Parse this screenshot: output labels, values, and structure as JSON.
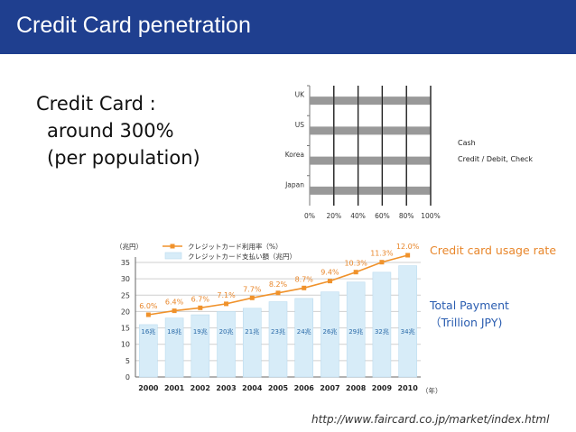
{
  "slide": {
    "title": "Credit Card penetration",
    "bullet_lines": [
      "Credit Card :",
      "around 300%",
      "(per population)"
    ],
    "usage_rate_label": "Credit card usage rate",
    "payment_label_line1": "Total Payment",
    "payment_label_line2": "（Trillion JPY)",
    "source": "http://www.faircard.co.jp/market/index.html"
  },
  "colors": {
    "title_bar": "#1f3f8f",
    "stacked_bar": "#999999",
    "usage_line": "#f0922b",
    "payment_bar": "#d7ecf8",
    "payment_value_text": "#2a6aa8",
    "rate_text": "#e8862a"
  },
  "chart_data": [
    {
      "type": "bar",
      "orientation": "horizontal",
      "stacked": true,
      "categories": [
        "UK",
        "US",
        "Korea",
        "Japan"
      ],
      "series": [
        {
          "name": "Cash",
          "values": [
            100,
            100,
            100,
            100
          ]
        },
        {
          "name": "Credit / Debit, Check",
          "values": [
            0,
            0,
            0,
            0
          ]
        }
      ],
      "xticks": [
        "0%",
        "20%",
        "40%",
        "60%",
        "80%",
        "100%"
      ],
      "xlim": [
        0,
        100
      ],
      "grid": true,
      "legend_position": "right"
    },
    {
      "type": "bar+line",
      "x": [
        "2000",
        "2001",
        "2002",
        "2003",
        "2004",
        "2005",
        "2006",
        "2007",
        "2008",
        "2009",
        "2010"
      ],
      "series": [
        {
          "name": "クレジットカード支払い額（兆円）",
          "type": "bar",
          "values": [
            16,
            18,
            19,
            20,
            21,
            23,
            24,
            26,
            29,
            32,
            34
          ],
          "labels": [
            "16兆",
            "18兆",
            "19兆",
            "20兆",
            "21兆",
            "23兆",
            "24兆",
            "26兆",
            "29兆",
            "32兆",
            "34兆"
          ]
        },
        {
          "name": "クレジットカード利用率（%）",
          "type": "line",
          "values": [
            6.0,
            6.4,
            6.7,
            7.1,
            7.7,
            8.2,
            8.7,
            9.4,
            10.3,
            11.3,
            12.0
          ],
          "labels": [
            "6.0%",
            "6.4%",
            "6.7%",
            "7.1%",
            "7.7%",
            "8.2%",
            "8.7%",
            "9.4%",
            "10.3%",
            "11.3%",
            "12.0%"
          ]
        }
      ],
      "y_unit": "（兆円）",
      "x_unit": "（年）",
      "yticks": [
        0,
        5,
        10,
        15,
        20,
        25,
        30,
        35
      ],
      "ylim": [
        0,
        35
      ],
      "grid": true,
      "legend_position": "top-left"
    }
  ]
}
